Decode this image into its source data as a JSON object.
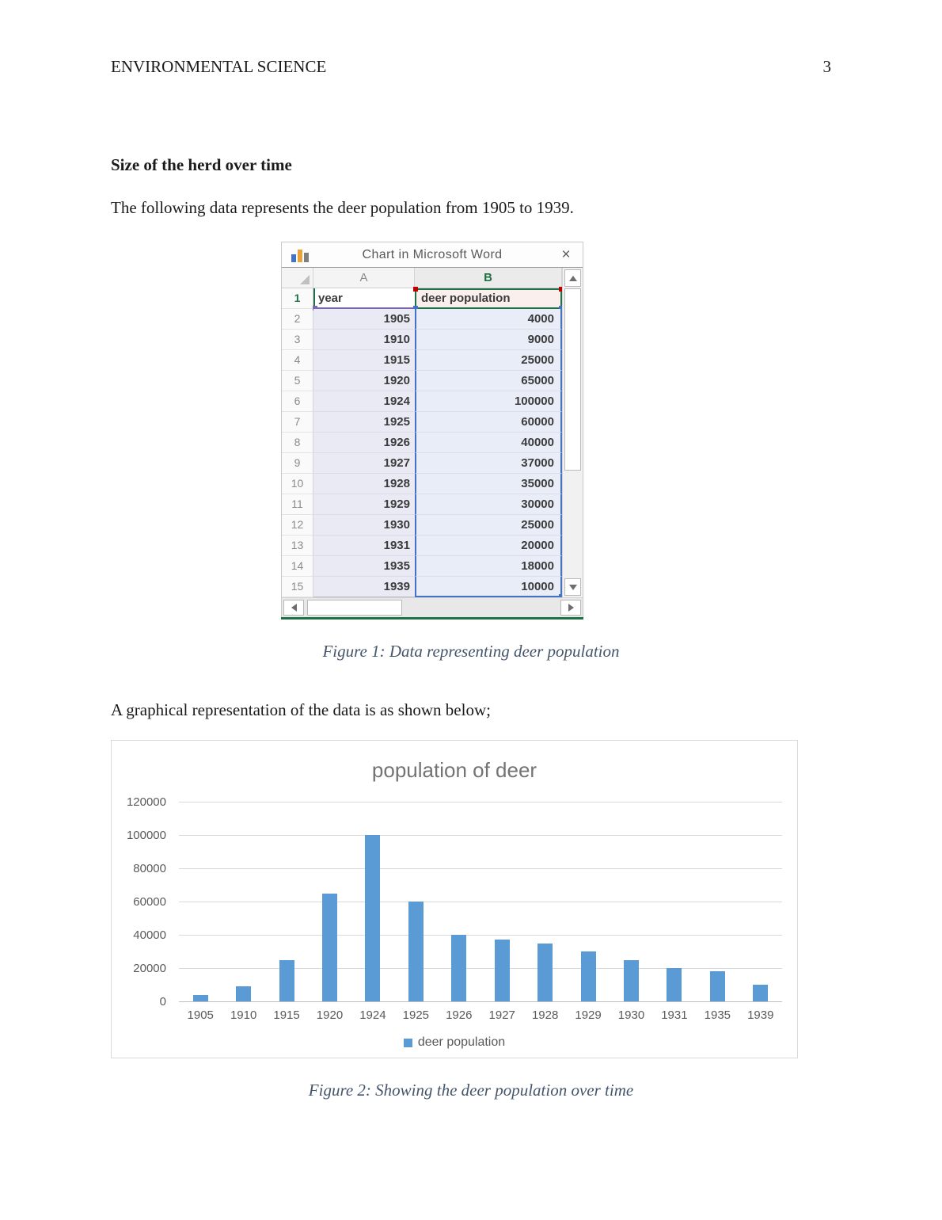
{
  "page": {
    "header_left": "ENVIRONMENTAL SCIENCE",
    "page_number": "3"
  },
  "section": {
    "heading": "Size of the herd over time",
    "paragraph1": "The following data represents the deer population from 1905 to 1939.",
    "paragraph2": "A graphical representation of the data is as shown below;"
  },
  "figure1_caption": "Figure 1: Data representing deer population",
  "figure2_caption": "Figure 2: Showing the deer population over time",
  "spreadsheet": {
    "title": "Chart in Microsoft Word",
    "close_label": "×",
    "columns": {
      "a": "A",
      "b": "B"
    },
    "header_row": {
      "n": "1",
      "a": "year",
      "b": "deer population"
    },
    "rows": [
      {
        "n": "2",
        "a": "1905",
        "b": "4000"
      },
      {
        "n": "3",
        "a": "1910",
        "b": "9000"
      },
      {
        "n": "4",
        "a": "1915",
        "b": "25000"
      },
      {
        "n": "5",
        "a": "1920",
        "b": "65000"
      },
      {
        "n": "6",
        "a": "1924",
        "b": "100000"
      },
      {
        "n": "7",
        "a": "1925",
        "b": "60000"
      },
      {
        "n": "8",
        "a": "1926",
        "b": "40000"
      },
      {
        "n": "9",
        "a": "1927",
        "b": "37000"
      },
      {
        "n": "10",
        "a": "1928",
        "b": "35000"
      },
      {
        "n": "11",
        "a": "1929",
        "b": "30000"
      },
      {
        "n": "12",
        "a": "1930",
        "b": "25000"
      },
      {
        "n": "13",
        "a": "1931",
        "b": "20000"
      },
      {
        "n": "14",
        "a": "1935",
        "b": "18000"
      },
      {
        "n": "15",
        "a": "1939",
        "b": "10000"
      }
    ]
  },
  "chart_data": {
    "type": "bar",
    "title": "population of deer",
    "categories": [
      "1905",
      "1910",
      "1915",
      "1920",
      "1924",
      "1925",
      "1926",
      "1927",
      "1928",
      "1929",
      "1930",
      "1931",
      "1935",
      "1939"
    ],
    "values": [
      4000,
      9000,
      25000,
      65000,
      100000,
      60000,
      40000,
      37000,
      35000,
      30000,
      25000,
      20000,
      18000,
      10000
    ],
    "xlabel": "",
    "ylabel": "",
    "ylim": [
      0,
      120000
    ],
    "yticks": [
      0,
      20000,
      40000,
      60000,
      80000,
      100000,
      120000
    ],
    "grid": true,
    "legend": [
      "deer population"
    ],
    "legend_position": "bottom",
    "bar_color": "#5B9BD5"
  },
  "colors": {
    "bar_blue": "#5B9BD5",
    "caption_slate": "#44546A",
    "excel_green": "#1E7145",
    "selection_blue": "#4472C4",
    "selection_purple": "#7B68AE",
    "selection_red": "#C00000"
  }
}
